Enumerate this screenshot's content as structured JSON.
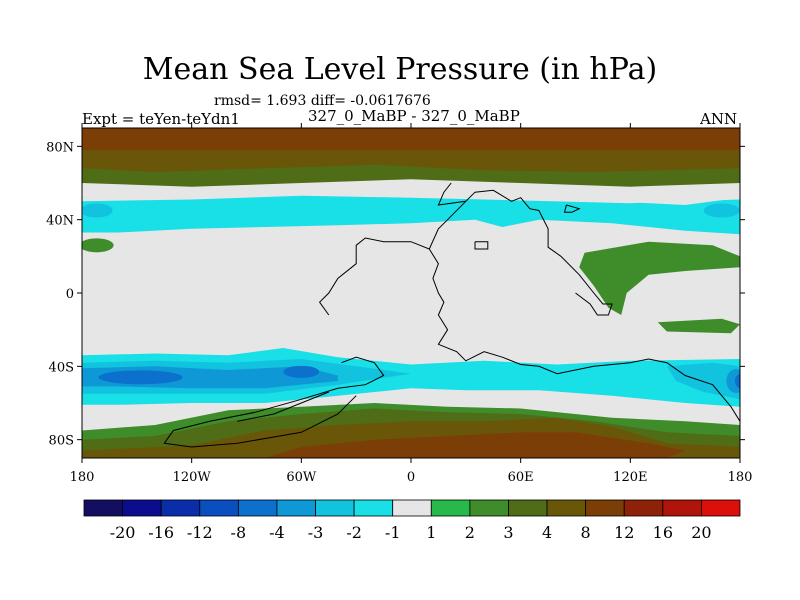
{
  "chart_data": {
    "type": "heatmap",
    "title": "Mean Sea Level Pressure (in hPa)",
    "stats": "rmsd= 1.693 diff= -0.0617676",
    "expt_label": "Expt = teYen-teYdn1",
    "comparison": "327_0_MaBP - 327_0_MaBP",
    "season": "ANN",
    "xlim": [
      -180,
      180
    ],
    "ylim": [
      -90,
      90
    ],
    "x_ticks": [
      {
        "value": -180,
        "label": "180"
      },
      {
        "value": -120,
        "label": "120W"
      },
      {
        "value": -60,
        "label": "60W"
      },
      {
        "value": 0,
        "label": "0"
      },
      {
        "value": 60,
        "label": "60E"
      },
      {
        "value": 120,
        "label": "120E"
      },
      {
        "value": 180,
        "label": "180"
      }
    ],
    "y_ticks": [
      {
        "value": 80,
        "label": "80N"
      },
      {
        "value": 40,
        "label": "40N"
      },
      {
        "value": 0,
        "label": "0"
      },
      {
        "value": -40,
        "label": "40S"
      },
      {
        "value": -80,
        "label": "80S"
      }
    ],
    "colorbar": {
      "labels": [
        "-20",
        "-16",
        "-12",
        "-8",
        "-4",
        "-3",
        "-2",
        "-1",
        "1",
        "2",
        "3",
        "4",
        "8",
        "12",
        "16",
        "20"
      ],
      "colors": [
        "#130e60",
        "#0b0d8e",
        "#0a2eaa",
        "#0a4ec0",
        "#0b71cd",
        "#0e99d6",
        "#11c3df",
        "#19dfe6",
        "#e6e6e6",
        "#27ba4b",
        "#3f8c2a",
        "#4f6c17",
        "#6a5608",
        "#7c3e07",
        "#8e2208",
        "#b0140b",
        "#dd0f0b"
      ]
    },
    "bands": [
      {
        "level": "8",
        "lat_min": 65,
        "lat_max": 90
      },
      {
        "level": "4",
        "lat_min": 58,
        "lat_max": 70
      },
      {
        "level": "-2",
        "lat_min": 30,
        "lat_max": 52
      },
      {
        "level": "-4",
        "lat_min": -52,
        "lat_max": -38
      },
      {
        "level": "-2",
        "lat_min": -60,
        "lat_max": -30
      },
      {
        "level": "2",
        "lat_min": -90,
        "lat_max": -62
      },
      {
        "level": "4",
        "lat_min": -90,
        "lat_max": -72
      }
    ]
  }
}
